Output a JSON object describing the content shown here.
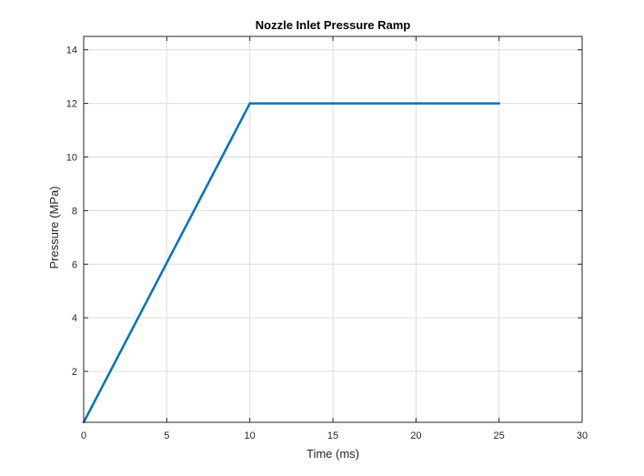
{
  "chart_data": {
    "type": "line",
    "title": "Nozzle Inlet Pressure Ramp",
    "xlabel": "Time (ms)",
    "ylabel": "Pressure (MPa)",
    "xlim": [
      0,
      30
    ],
    "ylim": [
      0.1,
      14.5
    ],
    "xticks": [
      0,
      5,
      10,
      15,
      20,
      25,
      30
    ],
    "yticks": [
      2,
      4,
      6,
      8,
      10,
      12,
      14
    ],
    "grid": true,
    "legend": "none",
    "series": [
      {
        "color": "#0072bd",
        "x": [
          0,
          10,
          25
        ],
        "y": [
          0.1,
          12,
          12
        ]
      }
    ]
  }
}
